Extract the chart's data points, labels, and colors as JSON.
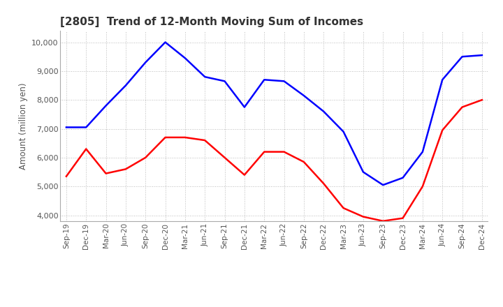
{
  "title": "[2805]  Trend of 12-Month Moving Sum of Incomes",
  "ylabel": "Amount (million yen)",
  "ylim": [
    3800,
    10400
  ],
  "yticks": [
    4000,
    5000,
    6000,
    7000,
    8000,
    9000,
    10000
  ],
  "ordinary_income_color": "#0000FF",
  "net_income_color": "#FF0000",
  "background_color": "#FFFFFF",
  "grid_color": "#AAAAAA",
  "x_labels": [
    "Sep-19",
    "Dec-19",
    "Mar-20",
    "Jun-20",
    "Sep-20",
    "Dec-20",
    "Mar-21",
    "Jun-21",
    "Sep-21",
    "Dec-21",
    "Mar-22",
    "Jun-22",
    "Sep-22",
    "Dec-22",
    "Mar-23",
    "Jun-23",
    "Sep-23",
    "Dec-23",
    "Mar-24",
    "Jun-24",
    "Sep-24",
    "Dec-24"
  ],
  "ordinary_income": [
    7050,
    7050,
    7800,
    8500,
    9300,
    10000,
    9450,
    8800,
    8650,
    7750,
    8700,
    8650,
    8150,
    7600,
    6900,
    5500,
    5050,
    5300,
    6200,
    8700,
    9500,
    9550
  ],
  "net_income": [
    5350,
    6300,
    5450,
    5600,
    6000,
    6700,
    6700,
    6600,
    6000,
    5400,
    6200,
    6200,
    5850,
    5100,
    4250,
    3950,
    3800,
    3900,
    5000,
    6950,
    7750,
    8000
  ]
}
